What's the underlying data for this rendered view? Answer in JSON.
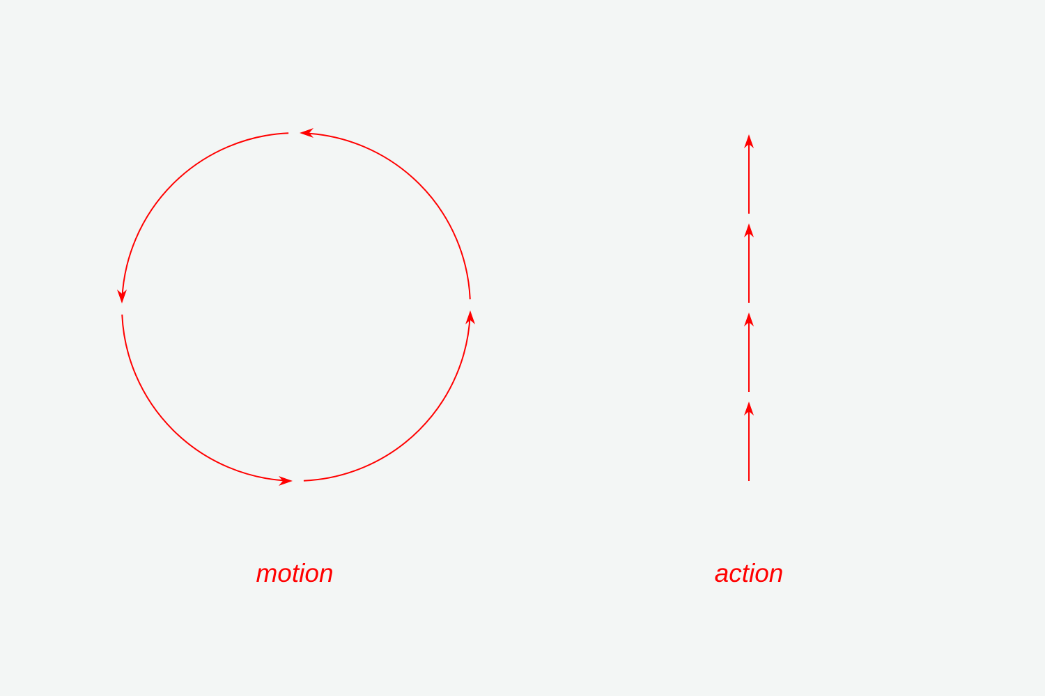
{
  "diagram": {
    "accent_color": "#ff0000",
    "background_color": "#f3f6f5",
    "left": {
      "label": "motion",
      "shape": "circle",
      "arrow_direction": "counter-clockwise",
      "arrow_count": 4
    },
    "right": {
      "label": "action",
      "shape": "vertical-line",
      "arrow_direction": "up",
      "arrow_count": 4
    }
  }
}
